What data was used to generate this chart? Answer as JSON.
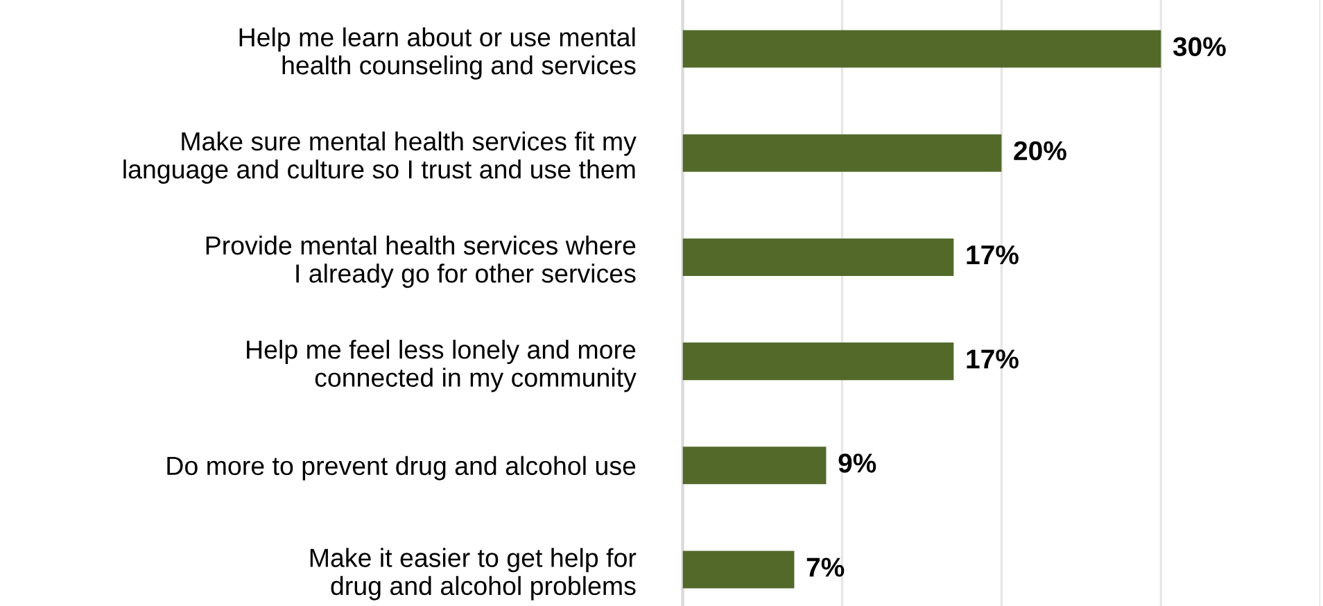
{
  "chart_data": {
    "type": "bar",
    "orientation": "horizontal",
    "categories": [
      "Help me learn about or use mental\nhealth counseling and services",
      "Make sure mental health services fit my\nlanguage and culture so I trust and use them",
      "Provide mental health services where\nI already go for other services",
      "Help me feel less lonely and more\nconnected in my community",
      "Do more to prevent drug and alcohol use",
      "Make it easier to get help for\ndrug and alcohol problems"
    ],
    "values": [
      30,
      20,
      17,
      17,
      9,
      7
    ],
    "value_labels": [
      "30%",
      "20%",
      "17%",
      "17%",
      "9%",
      "7%"
    ],
    "color": "#52692a",
    "xlim": [
      0,
      40
    ],
    "xticks": [
      {
        "value": 0,
        "label": null
      },
      {
        "value": 10,
        "label": null
      },
      {
        "value": 20,
        "label": null
      },
      {
        "value": 30,
        "label": null
      },
      {
        "value": 40,
        "label": null
      }
    ],
    "grid": "x",
    "legend": false,
    "tick_labels": "y"
  }
}
